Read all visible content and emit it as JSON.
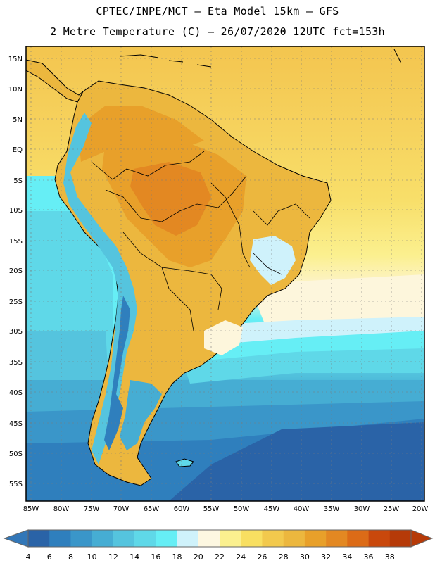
{
  "header": {
    "line1": "CPTEC/INPE/MCT –  Eta Model 15km – GFS",
    "line2": "2 Metre Temperature (C) – 26/07/2020 12UTC fct=153h"
  },
  "axes": {
    "lat_labels": [
      "15N",
      "10N",
      "5N",
      "EQ",
      "5S",
      "10S",
      "15S",
      "20S",
      "25S",
      "30S",
      "35S",
      "40S",
      "45S",
      "50S",
      "55S"
    ],
    "lon_labels": [
      "85W",
      "80W",
      "75W",
      "70W",
      "65W",
      "60W",
      "55W",
      "50W",
      "45W",
      "40W",
      "35W",
      "30W",
      "25W",
      "20W"
    ]
  },
  "colorbar": {
    "labels": [
      "4",
      "6",
      "8",
      "10",
      "12",
      "14",
      "16",
      "18",
      "20",
      "22",
      "24",
      "26",
      "28",
      "30",
      "32",
      "34",
      "36",
      "38"
    ],
    "colors": [
      "#2a63a7",
      "#2f7fbd",
      "#3a96c9",
      "#46add3",
      "#55c4de",
      "#5fd8e8",
      "#66eef5",
      "#cff2fb",
      "#fdf7e1",
      "#fbf08f",
      "#f8df61",
      "#f2c94d",
      "#ecb73e",
      "#e8a02a",
      "#e38822",
      "#dc6b17",
      "#c9480c",
      "#b63a08"
    ],
    "low_color": "#3277b8",
    "high_color": "#b63a08"
  },
  "chart_data": {
    "type": "heatmap",
    "variable": "2 Metre Temperature",
    "units": "C",
    "valid_run": "26/07/2020 12UTC",
    "forecast": "fct=153h",
    "lon_range": [
      -86,
      -19
    ],
    "lat_range": [
      -58,
      17
    ],
    "levels": [
      4,
      6,
      8,
      10,
      12,
      14,
      16,
      18,
      20,
      22,
      24,
      26,
      28,
      30,
      32,
      34,
      36,
      38
    ]
  }
}
